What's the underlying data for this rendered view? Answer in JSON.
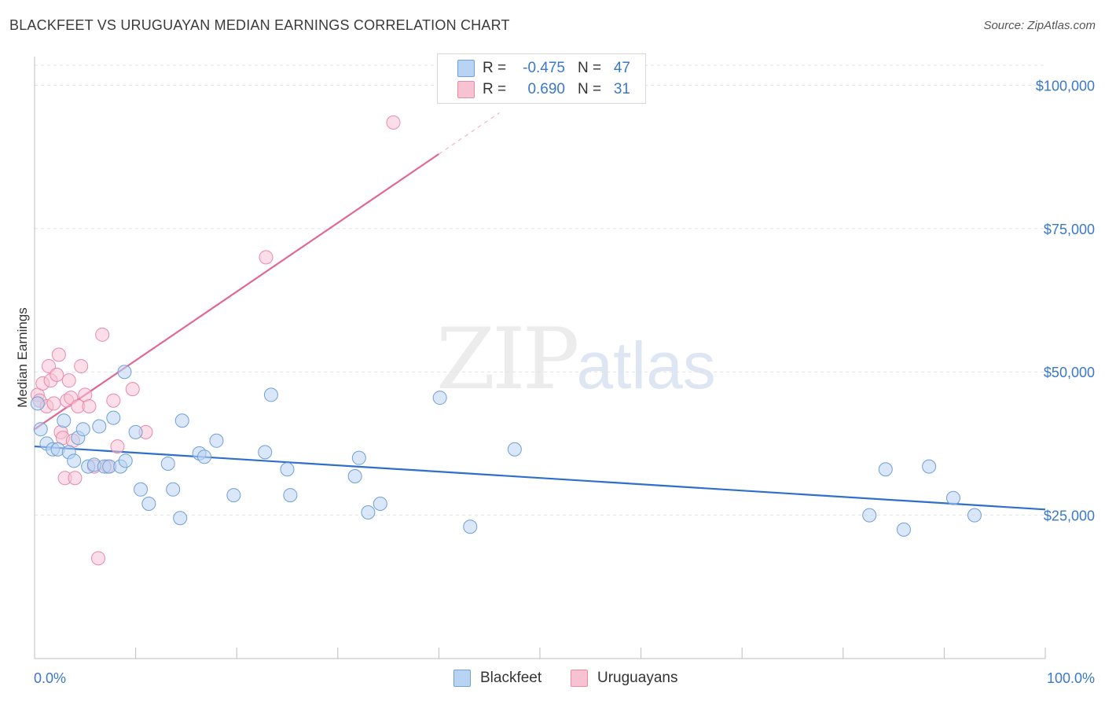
{
  "title": "BLACKFEET VS URUGUAYAN MEDIAN EARNINGS CORRELATION CHART",
  "source": "Source: ZipAtlas.com",
  "watermark": {
    "zip": "ZIP",
    "atlas": "atlas"
  },
  "colors": {
    "blackfeet_fill": "#b9d3f3",
    "blackfeet_stroke": "#6f9fd8",
    "blackfeet_line": "#2e6fcc",
    "uruguayans_fill": "#f7c3d3",
    "uruguayans_stroke": "#e88aaa",
    "uruguayans_line": "#e06892",
    "axis_text": "#3a78c9"
  },
  "legend": [
    {
      "r_label": "R =",
      "r_value": "-0.475",
      "n_label": "N =",
      "n_value": "47",
      "series": "blackfeet"
    },
    {
      "r_label": "R =",
      "r_value": "0.690",
      "n_label": "N =",
      "n_value": "31",
      "series": "uruguayans"
    }
  ],
  "bottom_legend": [
    {
      "label": "Blackfeet",
      "series": "blackfeet"
    },
    {
      "label": "Uruguayans",
      "series": "uruguayans"
    }
  ],
  "chart_data": {
    "type": "scatter",
    "title": "BLACKFEET VS URUGUAYAN MEDIAN EARNINGS CORRELATION CHART",
    "xlabel": "",
    "ylabel": "Median Earnings",
    "xlim": [
      0,
      100
    ],
    "ylim": [
      0,
      105000
    ],
    "x_tick_labels": [
      "0.0%",
      "100.0%"
    ],
    "y_ticks": [
      25000,
      50000,
      75000,
      100000
    ],
    "y_tick_labels": [
      "$25,000",
      "$50,000",
      "$75,000",
      "$100,000"
    ],
    "grid": true,
    "legend_position": "top-center",
    "series": [
      {
        "name": "Blackfeet",
        "points": [
          [
            0.3,
            44500
          ],
          [
            0.6,
            40000
          ],
          [
            1.2,
            37500
          ],
          [
            1.8,
            36500
          ],
          [
            2.3,
            36500
          ],
          [
            2.9,
            41500
          ],
          [
            3.4,
            36000
          ],
          [
            3.9,
            34500
          ],
          [
            4.3,
            38500
          ],
          [
            4.8,
            40000
          ],
          [
            5.3,
            33500
          ],
          [
            5.9,
            33800
          ],
          [
            6.4,
            40500
          ],
          [
            6.9,
            33500
          ],
          [
            7.4,
            33500
          ],
          [
            7.8,
            42000
          ],
          [
            8.5,
            33500
          ],
          [
            9.0,
            34500
          ],
          [
            8.9,
            50000
          ],
          [
            10.0,
            39500
          ],
          [
            10.5,
            29500
          ],
          [
            11.3,
            27000
          ],
          [
            13.2,
            34000
          ],
          [
            13.7,
            29500
          ],
          [
            14.4,
            24500
          ],
          [
            14.6,
            41500
          ],
          [
            16.3,
            35800
          ],
          [
            16.8,
            35200
          ],
          [
            18.0,
            38000
          ],
          [
            19.7,
            28500
          ],
          [
            22.8,
            36000
          ],
          [
            23.4,
            46000
          ],
          [
            25.0,
            33000
          ],
          [
            25.3,
            28500
          ],
          [
            31.7,
            31800
          ],
          [
            32.1,
            35000
          ],
          [
            33.0,
            25500
          ],
          [
            34.2,
            27000
          ],
          [
            40.1,
            45500
          ],
          [
            43.1,
            23000
          ],
          [
            47.5,
            36500
          ],
          [
            82.6,
            25000
          ],
          [
            84.2,
            33000
          ],
          [
            86.0,
            22500
          ],
          [
            88.5,
            33500
          ],
          [
            90.9,
            28000
          ],
          [
            93.0,
            25000
          ]
        ]
      },
      {
        "name": "Uruguayans",
        "points": [
          [
            0.3,
            46000
          ],
          [
            0.5,
            45000
          ],
          [
            0.8,
            48000
          ],
          [
            1.2,
            44000
          ],
          [
            1.4,
            51000
          ],
          [
            1.6,
            48500
          ],
          [
            1.9,
            44500
          ],
          [
            2.2,
            49500
          ],
          [
            2.4,
            53000
          ],
          [
            2.6,
            39500
          ],
          [
            2.8,
            38500
          ],
          [
            3.0,
            31500
          ],
          [
            3.2,
            45000
          ],
          [
            3.4,
            48500
          ],
          [
            3.6,
            45500
          ],
          [
            3.8,
            38000
          ],
          [
            4.0,
            31500
          ],
          [
            4.3,
            44000
          ],
          [
            4.6,
            51000
          ],
          [
            5.0,
            46000
          ],
          [
            5.4,
            44000
          ],
          [
            5.9,
            33500
          ],
          [
            6.3,
            17500
          ],
          [
            6.7,
            56500
          ],
          [
            7.2,
            33500
          ],
          [
            7.8,
            45000
          ],
          [
            9.7,
            47000
          ],
          [
            11.0,
            39500
          ],
          [
            22.9,
            70000
          ],
          [
            35.5,
            93500
          ],
          [
            8.2,
            37000
          ]
        ]
      }
    ],
    "trendlines": [
      {
        "series": "Blackfeet",
        "x": [
          0,
          100
        ],
        "y": [
          37000,
          26000
        ]
      },
      {
        "series": "Uruguayans",
        "x": [
          0,
          40
        ],
        "y": [
          40000,
          88000
        ],
        "dashed_extension_to_x": 46
      }
    ]
  }
}
